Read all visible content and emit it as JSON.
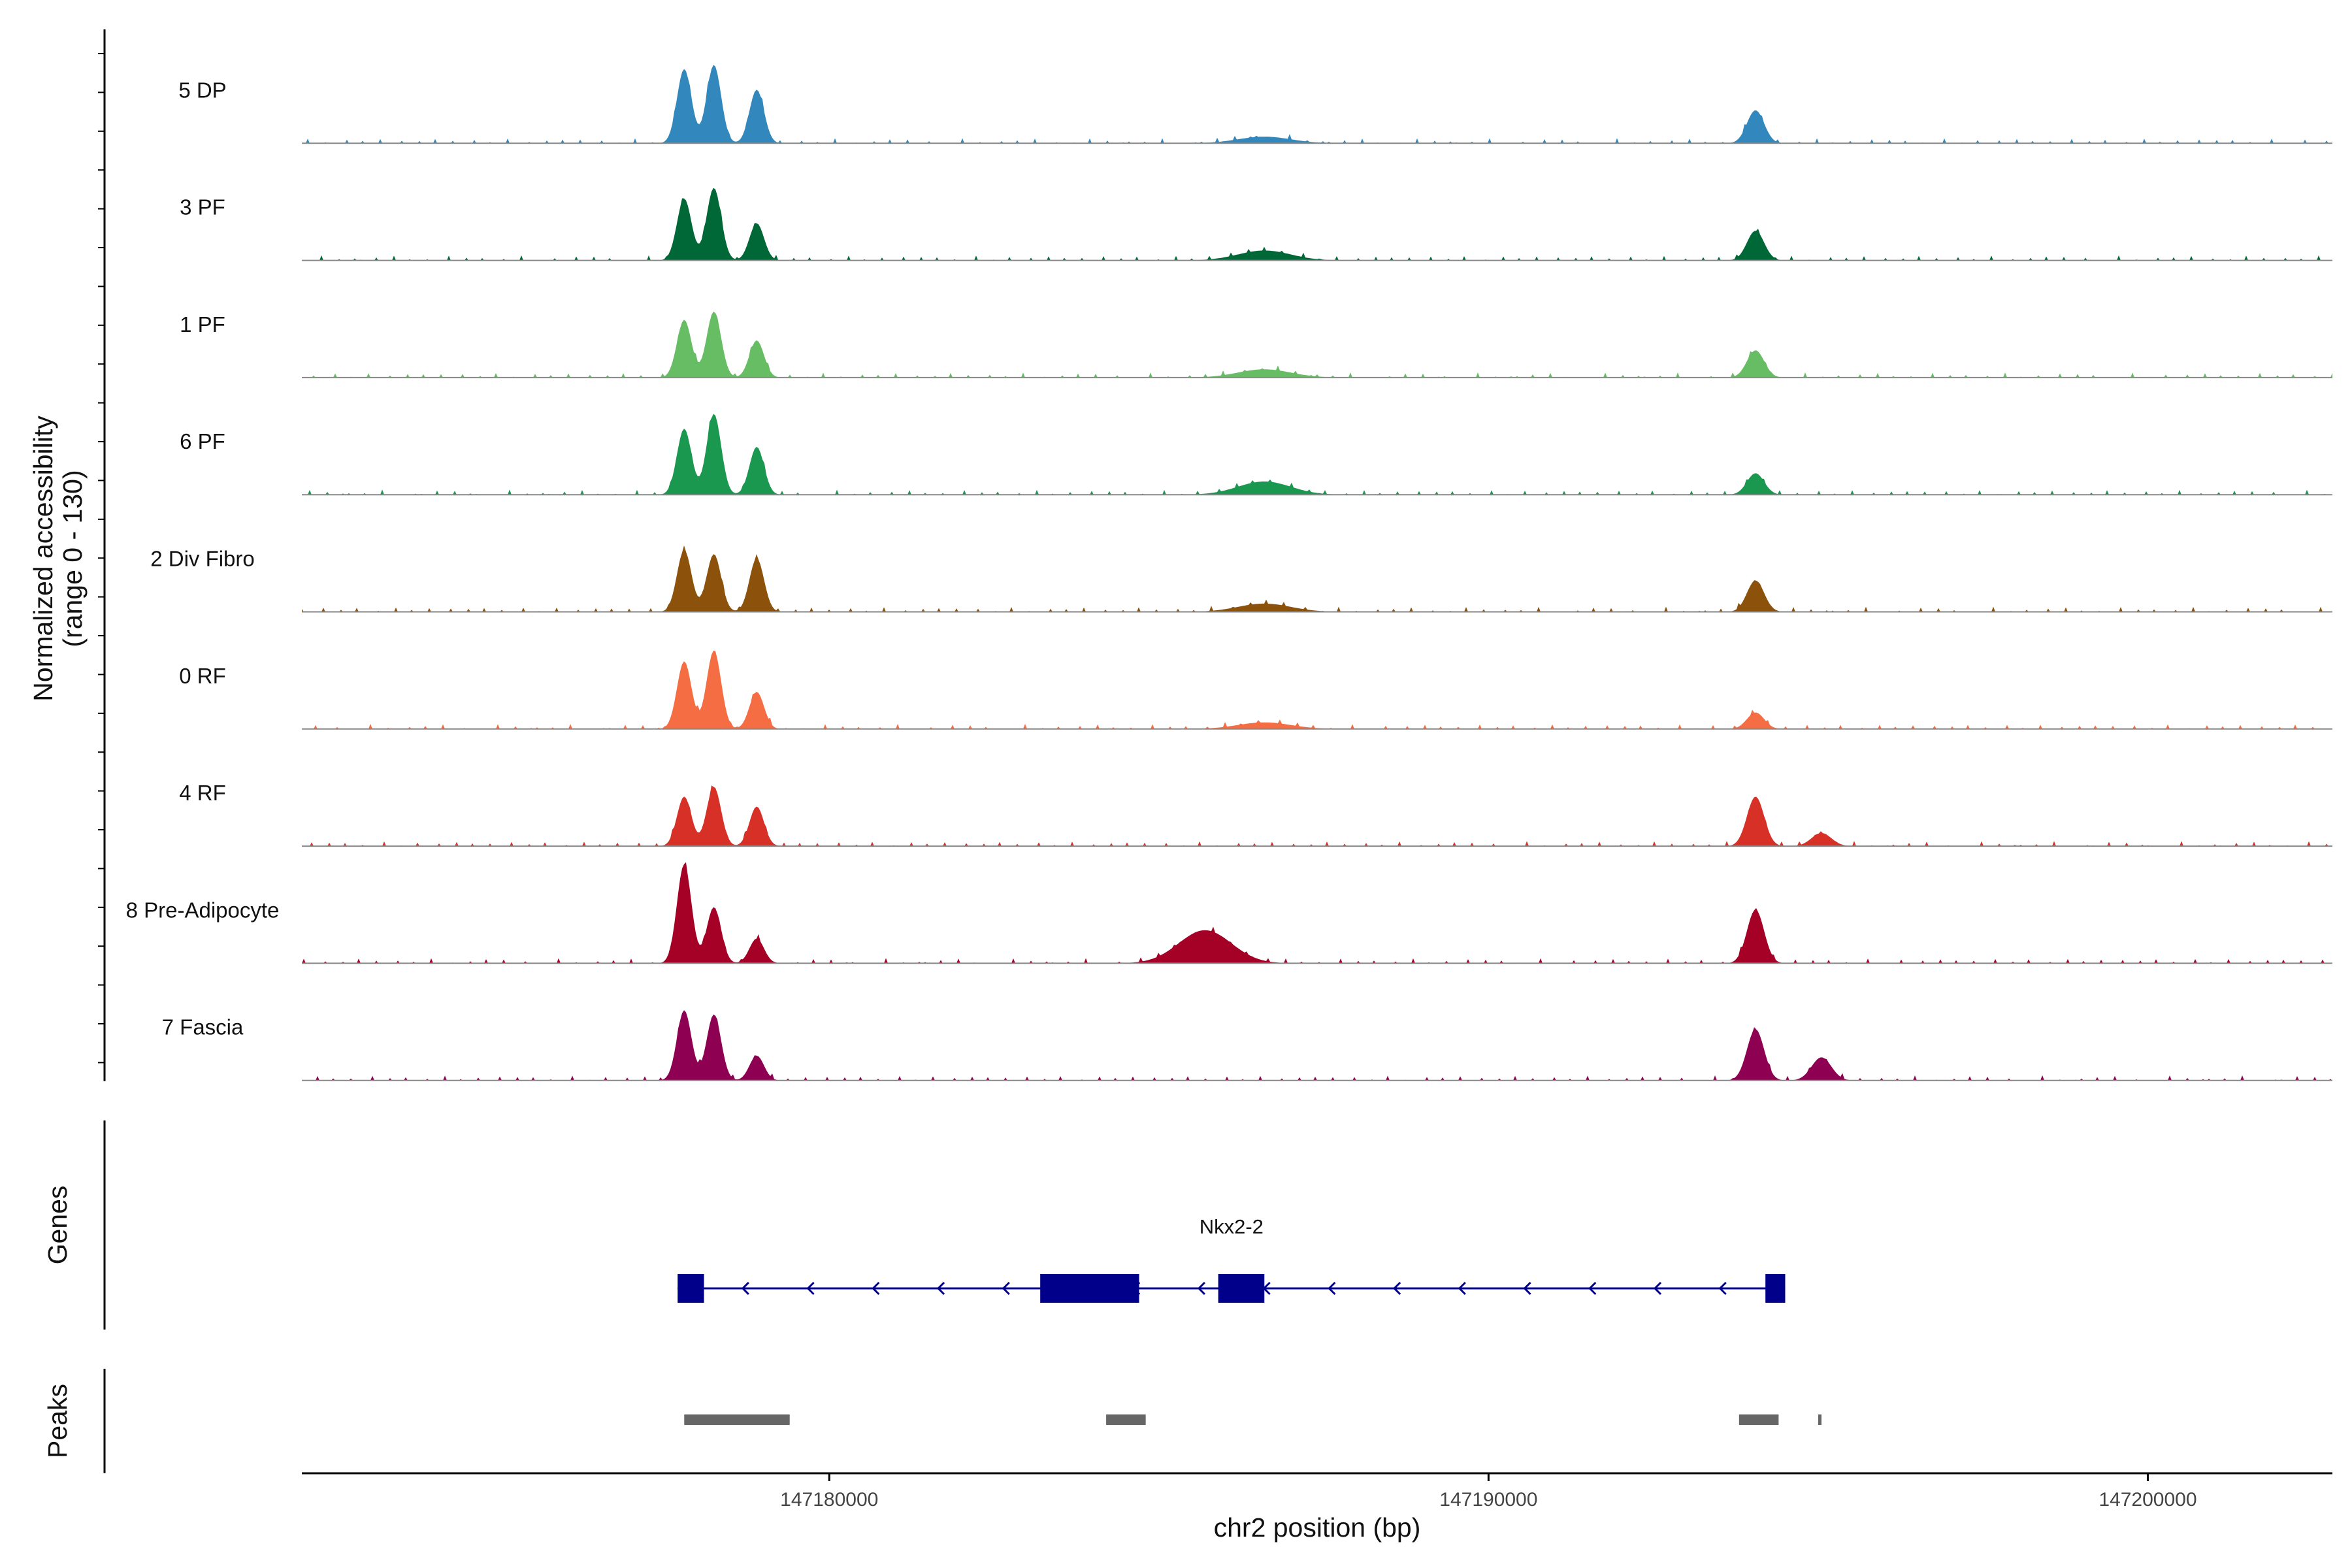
{
  "chart_data": {
    "type": "area",
    "title": "",
    "ylabel": "Normalized accessibility",
    "ylabel_range": "(range 0 - 130)",
    "y_range": [
      0,
      130
    ],
    "xlabel": "chr2 position (bp)",
    "x_range": [
      147172000,
      147202800
    ],
    "x_ticks": [
      147180000,
      147190000,
      147200000
    ],
    "x_tick_labels": [
      "147180000",
      "147190000",
      "147200000"
    ],
    "tracks": [
      {
        "name": "5 DP",
        "color": "#3288BD",
        "peaks": [
          [
            147177800,
            90,
            110
          ],
          [
            147178250,
            95,
            110
          ],
          [
            147178900,
            65,
            110
          ],
          [
            147194050,
            40,
            130
          ],
          [
            147186600,
            8,
            400
          ]
        ]
      },
      {
        "name": "3 PF",
        "color": "#006837",
        "peaks": [
          [
            147177800,
            75,
            110
          ],
          [
            147178250,
            88,
            110
          ],
          [
            147178900,
            45,
            110
          ],
          [
            147194050,
            36,
            130
          ],
          [
            147186600,
            12,
            400
          ]
        ]
      },
      {
        "name": "1 PF",
        "color": "#66BD63",
        "peaks": [
          [
            147177800,
            70,
            110
          ],
          [
            147178250,
            80,
            110
          ],
          [
            147178900,
            45,
            110
          ],
          [
            147194050,
            33,
            130
          ],
          [
            147186600,
            10,
            400
          ]
        ]
      },
      {
        "name": "6 PF",
        "color": "#1A9850",
        "peaks": [
          [
            147177800,
            80,
            110
          ],
          [
            147178250,
            98,
            110
          ],
          [
            147178900,
            58,
            110
          ],
          [
            147194050,
            26,
            130
          ],
          [
            147186600,
            16,
            400
          ]
        ]
      },
      {
        "name": "2 Div Fibro",
        "color": "#8C510A",
        "peaks": [
          [
            147177800,
            75,
            110
          ],
          [
            147178250,
            70,
            110
          ],
          [
            147178900,
            65,
            110
          ],
          [
            147194050,
            38,
            130
          ],
          [
            147186600,
            10,
            400
          ]
        ]
      },
      {
        "name": "0 RF",
        "color": "#F46D43",
        "peaks": [
          [
            147177800,
            82,
            110
          ],
          [
            147178250,
            95,
            110
          ],
          [
            147178900,
            45,
            110
          ],
          [
            147194050,
            20,
            130
          ],
          [
            147186600,
            8,
            400
          ]
        ]
      },
      {
        "name": "4 RF",
        "color": "#D73027",
        "peaks": [
          [
            147177800,
            60,
            110
          ],
          [
            147178250,
            72,
            110
          ],
          [
            147178900,
            48,
            110
          ],
          [
            147194050,
            60,
            130
          ],
          [
            147195050,
            16,
            150
          ]
        ]
      },
      {
        "name": "8 Pre-Adipocyte",
        "color": "#A50026",
        "peaks": [
          [
            147177800,
            120,
            110
          ],
          [
            147178250,
            68,
            110
          ],
          [
            147178900,
            30,
            110
          ],
          [
            147185700,
            40,
            400
          ],
          [
            147194050,
            65,
            130
          ]
        ]
      },
      {
        "name": "7 Fascia",
        "color": "#8E0152",
        "peaks": [
          [
            147177800,
            85,
            110
          ],
          [
            147178250,
            80,
            110
          ],
          [
            147178900,
            30,
            110
          ],
          [
            147194050,
            62,
            130
          ],
          [
            147195050,
            28,
            150
          ]
        ]
      }
    ],
    "genes": [
      {
        "name": "Nkx2-2",
        "strand": "-",
        "start": 147177700,
        "end": 147194500,
        "exons": [
          [
            147177700,
            147178100
          ],
          [
            147183200,
            147184700
          ],
          [
            147185900,
            147186600
          ],
          [
            147194200,
            147194500
          ]
        ]
      }
    ],
    "peak_regions": [
      [
        147177800,
        147179400
      ],
      [
        147184200,
        147184800
      ],
      [
        147193800,
        147194400
      ],
      [
        147195000,
        147195050
      ]
    ]
  },
  "panels": {
    "genes_title": "Genes",
    "peaks_title": "Peaks"
  }
}
